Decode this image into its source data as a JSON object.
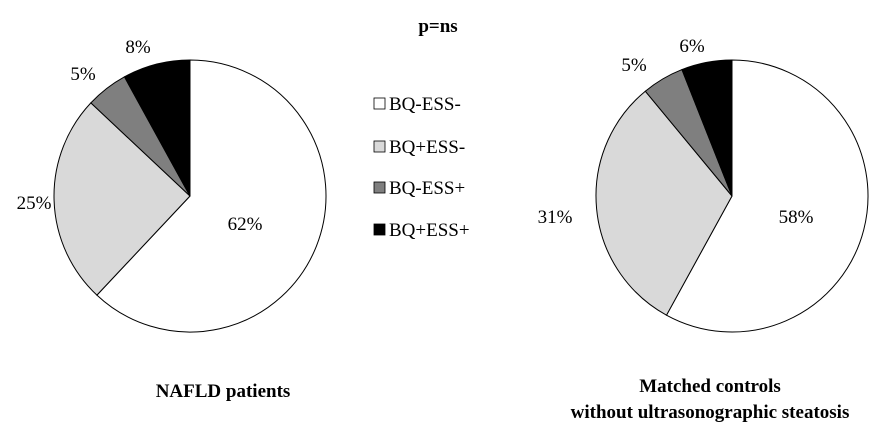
{
  "annotation": "p=ns",
  "legend": {
    "placement": "center",
    "entries": [
      {
        "label": "BQ-ESS-",
        "color": "#ffffff"
      },
      {
        "label": "BQ+ESS-",
        "color": "#d9d9d9"
      },
      {
        "label": "BQ-ESS+",
        "color": "#7f7f7f"
      },
      {
        "label": "BQ+ESS+",
        "color": "#000000"
      }
    ]
  },
  "chart_data": [
    {
      "type": "pie",
      "title": "NAFLD patients",
      "subtitle": "",
      "categories": [
        "BQ-ESS-",
        "BQ+ESS-",
        "BQ-ESS+",
        "BQ+ESS+"
      ],
      "values": [
        62,
        25,
        5,
        8
      ],
      "labels": [
        "62%",
        "25%",
        "5%",
        "8%"
      ],
      "colors": [
        "#ffffff",
        "#d9d9d9",
        "#7f7f7f",
        "#000000"
      ]
    },
    {
      "type": "pie",
      "title": "Matched controls",
      "subtitle": "without ultrasonographic steatosis",
      "categories": [
        "BQ-ESS-",
        "BQ+ESS-",
        "BQ-ESS+",
        "BQ+ESS+"
      ],
      "values": [
        58,
        31,
        5,
        6
      ],
      "labels": [
        "58%",
        "31%",
        "5%",
        "6%"
      ],
      "colors": [
        "#ffffff",
        "#d9d9d9",
        "#7f7f7f",
        "#000000"
      ]
    }
  ]
}
